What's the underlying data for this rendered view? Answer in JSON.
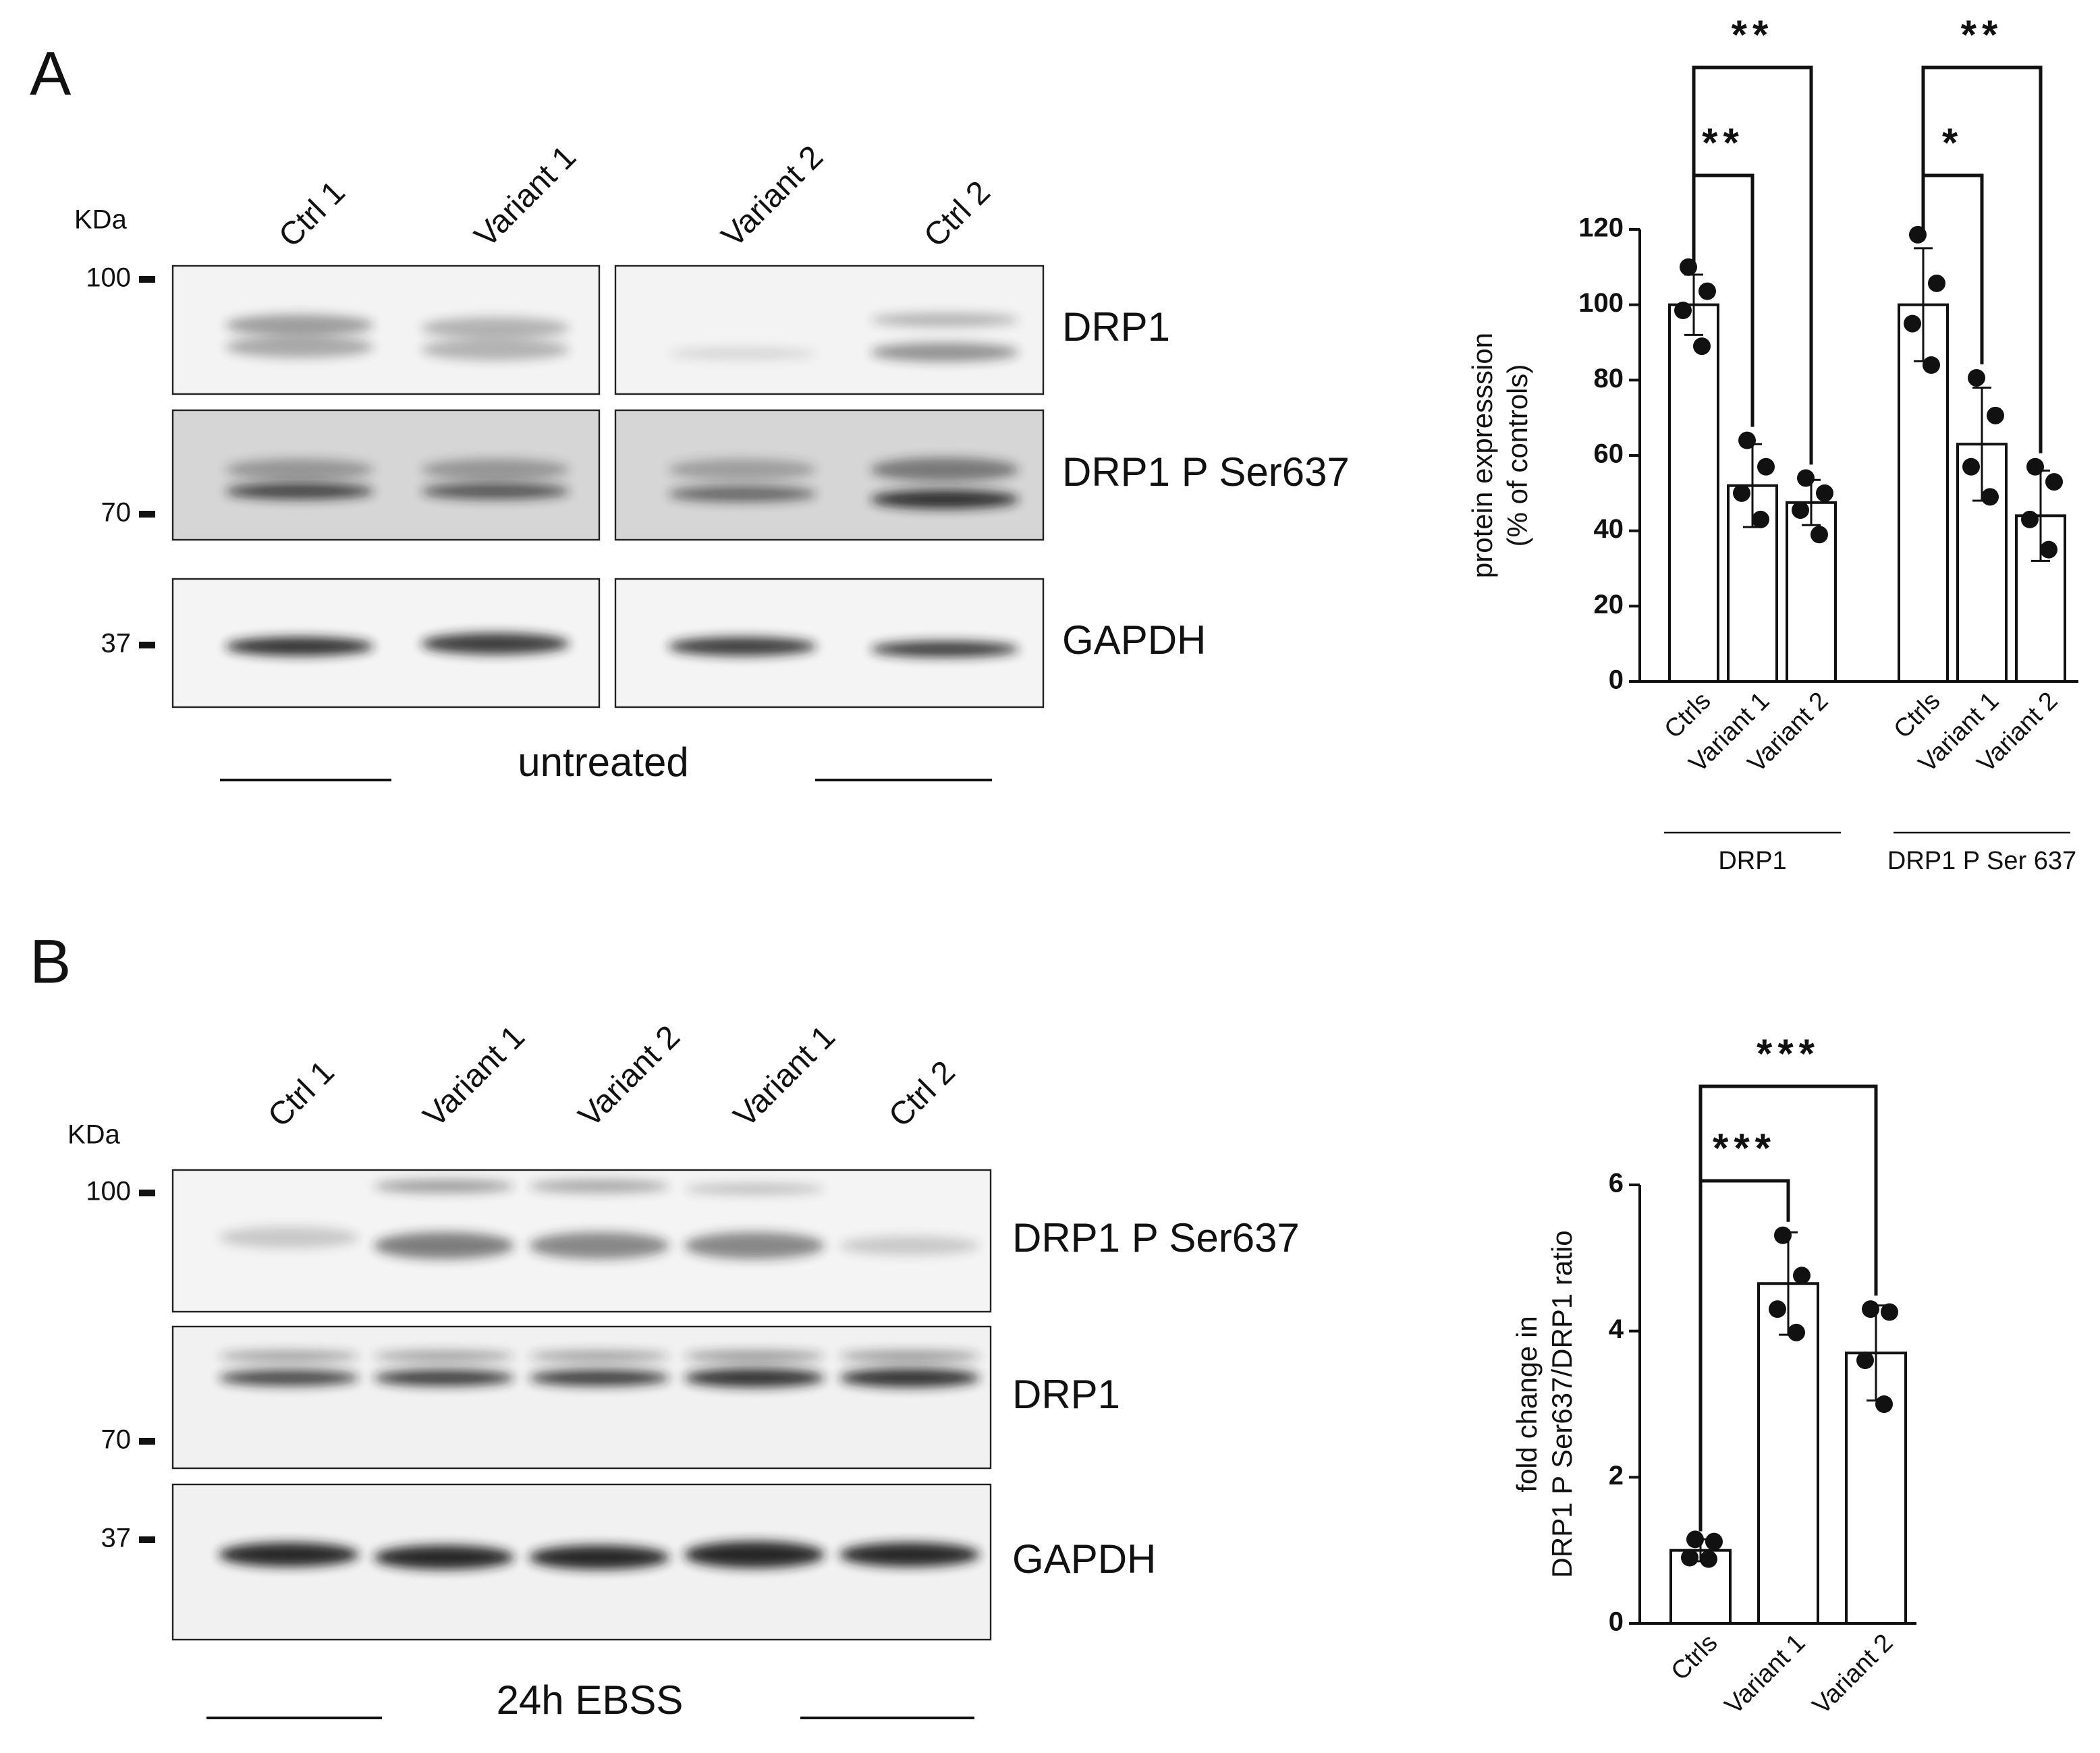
{
  "panel_a": {
    "label": "A",
    "kda": "KDa",
    "lanes": [
      "Ctrl 1",
      "Variant 1",
      "Variant 2",
      "Ctrl 2"
    ],
    "markers": [
      "100",
      "70",
      "37"
    ],
    "bands": [
      "DRP1",
      "DRP1 P Ser637",
      "GAPDH"
    ],
    "condition": "untreated"
  },
  "panel_b": {
    "label": "B",
    "kda": "KDa",
    "lanes": [
      "Ctrl 1",
      "Variant 1",
      "Variant 2",
      "Variant 1",
      "Ctrl 2"
    ],
    "markers": [
      "100",
      "70",
      "37"
    ],
    "bands": [
      "DRP1 P Ser637",
      "DRP1",
      "GAPDH"
    ],
    "condition": "24h EBSS"
  },
  "chart_data": [
    {
      "type": "bar",
      "y_label": [
        "protein expresssion",
        "(% of controls)"
      ],
      "categories": [
        "Ctrls",
        "Variant 1",
        "Variant 2"
      ],
      "ylim": [
        0,
        120
      ],
      "yticks": [
        0,
        20,
        40,
        60,
        80,
        100,
        120
      ],
      "series": [
        {
          "name": "DRP1",
          "color": "#ffffff",
          "values": [
            100,
            52,
            47.5
          ],
          "errors": [
            8,
            11,
            6
          ],
          "points": [
            [
              110,
              103.6,
              98.5,
              89
            ],
            [
              64,
              57,
              50,
              43
            ],
            [
              54,
              50,
              45.5,
              39
            ]
          ],
          "significance": [
            "**",
            "**"
          ]
        },
        {
          "name": "DRP1 P Ser 637",
          "color": "#ffffff",
          "values": [
            100,
            63,
            44
          ],
          "errors": [
            15,
            15,
            12
          ],
          "points": [
            [
              118.6,
              105.7,
              95,
              84
            ],
            [
              80.6,
              70.6,
              57,
              49
            ],
            [
              57,
              53,
              43,
              35
            ]
          ],
          "significance": [
            "*",
            "**"
          ]
        }
      ]
    },
    {
      "type": "bar",
      "y_label": [
        "fold change in",
        "DRP1 P Ser637/DRP1 ratio"
      ],
      "categories": [
        "Ctrls",
        "Variant 1",
        "Variant 2"
      ],
      "ylim": [
        0,
        6
      ],
      "yticks": [
        0,
        2,
        4,
        6
      ],
      "color": "#ffffff",
      "values": [
        1.0,
        4.65,
        3.7
      ],
      "errors": [
        0.15,
        0.7,
        0.65
      ],
      "points": [
        [
          1.15,
          1.12,
          0.9,
          0.88
        ],
        [
          5.31,
          4.76,
          4.3,
          3.98
        ],
        [
          4.3,
          4.26,
          3.6,
          3.0
        ]
      ],
      "significance": [
        "***",
        "***"
      ]
    }
  ]
}
